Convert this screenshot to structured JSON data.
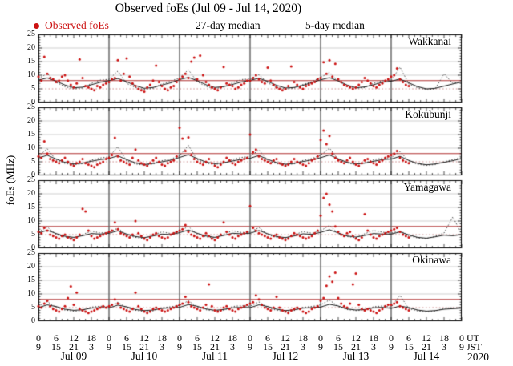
{
  "page": {
    "title": "Observed foEs (Jul 09 - Jul 14, 2020)",
    "year_label": "2020"
  },
  "legend": {
    "observed_label": "Observed foEs",
    "median27_label": "27-day median",
    "median5_label": "5-day median"
  },
  "axes": {
    "ylabel": "foEs (MHz)",
    "yticks": [
      "25",
      "20",
      "15",
      "10",
      "5",
      "0"
    ],
    "ut_unit": "UT",
    "jst_unit": "JST",
    "ut": [
      "0",
      "6",
      "12",
      "18",
      "0",
      "6",
      "12",
      "18",
      "0",
      "6",
      "12",
      "18",
      "0",
      "6",
      "12",
      "18",
      "0",
      "6",
      "12",
      "18",
      "0",
      "6",
      "12",
      "18",
      "0"
    ],
    "jst": [
      "9",
      "15",
      "21",
      "3",
      "9",
      "15",
      "21",
      "3",
      "9",
      "15",
      "21",
      "3",
      "9",
      "15",
      "21",
      "3",
      "9",
      "15",
      "21",
      "3",
      "9",
      "15",
      "21",
      "3",
      "9"
    ],
    "days": [
      "Jul 09",
      "Jul 10",
      "Jul 11",
      "Jul 12",
      "Jul 13",
      "Jul 14"
    ]
  },
  "colors": {
    "observed": "#cc1111",
    "median27": "#1a1a1a",
    "median5": "#3c3c3c",
    "threshold_solid": "#b03030",
    "threshold_dotted": "#cc8888",
    "grid": "#c4c4c4",
    "dayline": "#606060",
    "border": "#000000"
  },
  "chart_data": {
    "type": "scatter",
    "title": "Observed foEs (Jul 09 - Jul 14, 2020)",
    "ylabel": "foEs (MHz)",
    "ylim": [
      0,
      25
    ],
    "x_unit": "hours (UT) from Jul 09 00:00",
    "x_range": [
      0,
      144
    ],
    "observed_step_hours": 1,
    "median_step_hours": 3,
    "gridlines_mhz": [
      10,
      15,
      20
    ],
    "threshold_solid_mhz": 8,
    "threshold_dotted_mhz": 5,
    "day_boundaries_hours": [
      24,
      48,
      72,
      96,
      120
    ],
    "stations": [
      {
        "name": "Wakkanai",
        "observed": [
          9.5,
          8.0,
          16.8,
          10.5,
          9.0,
          8.5,
          7.5,
          8.0,
          9.5,
          10.0,
          8.0,
          6.5,
          5.5,
          7.0,
          15.8,
          9.0,
          6.0,
          5.5,
          5.0,
          4.5,
          6.0,
          5.5,
          6.5,
          7.0,
          7.5,
          8.5,
          9.0,
          15.5,
          8.0,
          10.5,
          16.2,
          9.5,
          7.0,
          6.0,
          5.0,
          4.5,
          4.0,
          5.5,
          6.5,
          8.0,
          13.5,
          7.5,
          6.0,
          5.0,
          4.5,
          5.5,
          6.0,
          7.5,
          8.5,
          9.5,
          10.5,
          9.0,
          15.0,
          16.5,
          8.5,
          17.2,
          10.0,
          7.5,
          6.5,
          5.5,
          5.0,
          4.5,
          5.5,
          13.0,
          7.0,
          6.5,
          6.0,
          5.0,
          5.5,
          6.5,
          7.0,
          8.0,
          8.0,
          9.0,
          10.0,
          8.5,
          7.5,
          7.0,
          12.8,
          8.0,
          6.5,
          5.5,
          5.0,
          4.5,
          5.0,
          6.0,
          13.2,
          7.5,
          6.5,
          5.5,
          5.0,
          6.0,
          6.5,
          7.0,
          7.5,
          8.5,
          9.0,
          14.8,
          10.5,
          15.5,
          9.5,
          14.2,
          8.5,
          7.5,
          6.5,
          6.0,
          5.5,
          5.0,
          5.5,
          6.5,
          7.5,
          9.0,
          8.0,
          7.0,
          6.0,
          5.5,
          6.5,
          7.0,
          8.0,
          8.5,
          9.5,
          10.0,
          12.5,
          8.5,
          7.5,
          6.5,
          6.0
        ],
        "median27": [
          8.2,
          9.0,
          7.8,
          6.4,
          5.4,
          5.6,
          6.5,
          7.4,
          8.0,
          8.8,
          7.6,
          6.2,
          5.2,
          5.5,
          6.4,
          7.2,
          8.4,
          9.2,
          8.0,
          6.5,
          5.5,
          5.8,
          6.6,
          7.5,
          8.1,
          8.9,
          7.7,
          6.3,
          5.3,
          5.5,
          6.3,
          7.3,
          8.3,
          9.1,
          7.9,
          6.4,
          5.4,
          5.7,
          6.5,
          7.4,
          7.8,
          8.6,
          7.2,
          5.8,
          5.0,
          5.2,
          6.0,
          6.8,
          7.5
        ],
        "median5": [
          8.8,
          10.6,
          7.4,
          5.8,
          5.0,
          5.3,
          7.0,
          8.2,
          8.5,
          11.5,
          7.0,
          5.5,
          4.8,
          5.2,
          6.8,
          7.8,
          9.0,
          12.0,
          7.6,
          5.9,
          5.1,
          5.6,
          7.2,
          8.4,
          8.6,
          10.2,
          7.2,
          5.6,
          4.9,
          5.3,
          6.6,
          7.6,
          9.2,
          11.0,
          7.8,
          6.0,
          5.2,
          5.5,
          7.0,
          8.0,
          8.0,
          13.0,
          6.8,
          5.4,
          4.7,
          5.0,
          10.5,
          7.0,
          7.6
        ]
      },
      {
        "name": "Kokubunji",
        "observed": [
          7.0,
          6.5,
          12.5,
          8.0,
          6.0,
          5.5,
          5.0,
          4.5,
          5.5,
          6.5,
          5.0,
          4.0,
          3.5,
          4.5,
          5.0,
          6.0,
          4.5,
          4.0,
          3.5,
          3.0,
          4.0,
          4.5,
          5.0,
          6.0,
          6.5,
          7.5,
          13.8,
          7.0,
          5.5,
          5.0,
          4.5,
          4.0,
          6.5,
          9.5,
          5.5,
          4.5,
          4.0,
          3.5,
          4.5,
          5.5,
          6.5,
          5.0,
          4.0,
          3.5,
          4.5,
          5.0,
          5.5,
          7.0,
          17.5,
          13.5,
          9.0,
          14.0,
          7.5,
          6.0,
          5.0,
          4.5,
          4.0,
          5.0,
          6.0,
          4.5,
          3.5,
          3.0,
          4.0,
          5.0,
          6.5,
          5.5,
          4.5,
          4.0,
          5.0,
          5.5,
          6.0,
          6.5,
          15.0,
          8.5,
          9.5,
          7.0,
          6.0,
          5.5,
          5.0,
          4.5,
          5.5,
          6.0,
          4.5,
          4.0,
          3.5,
          4.0,
          5.0,
          6.0,
          5.0,
          4.5,
          4.0,
          3.5,
          4.5,
          5.5,
          6.0,
          7.0,
          13.0,
          16.5,
          11.5,
          14.5,
          8.0,
          6.5,
          5.5,
          5.0,
          4.5,
          5.5,
          6.5,
          5.0,
          4.0,
          3.5,
          4.5,
          5.5,
          6.0,
          5.0,
          4.5,
          4.0,
          5.0,
          5.5,
          6.5,
          7.0,
          7.5,
          8.0,
          9.0,
          6.5,
          5.5,
          5.0,
          4.5
        ],
        "median27": [
          6.4,
          7.4,
          6.0,
          4.8,
          4.2,
          4.5,
          5.2,
          5.8,
          6.2,
          7.2,
          5.8,
          4.6,
          4.0,
          4.4,
          5.0,
          5.6,
          6.6,
          7.6,
          6.2,
          4.9,
          4.3,
          4.6,
          5.3,
          5.9,
          6.3,
          7.3,
          5.9,
          4.7,
          4.1,
          4.4,
          5.1,
          5.7,
          6.5,
          7.5,
          6.1,
          4.8,
          4.2,
          4.5,
          5.2,
          5.8,
          6.0,
          7.0,
          5.5,
          4.4,
          3.9,
          4.2,
          4.8,
          5.4,
          6.2
        ],
        "median5": [
          7.0,
          9.8,
          5.6,
          4.4,
          3.9,
          4.3,
          5.6,
          6.4,
          6.8,
          10.5,
          5.3,
          4.2,
          3.8,
          4.2,
          5.4,
          6.0,
          7.2,
          11.0,
          5.8,
          4.5,
          4.0,
          4.5,
          5.8,
          6.6,
          6.9,
          9.4,
          5.4,
          4.3,
          3.8,
          4.3,
          5.5,
          6.2,
          7.4,
          10.0,
          5.9,
          4.6,
          4.0,
          4.6,
          5.7,
          6.4,
          6.5,
          8.8,
          5.2,
          4.1,
          3.7,
          4.0,
          5.0,
          5.8,
          6.6
        ]
      },
      {
        "name": "Yamagawa",
        "observed": [
          6.0,
          5.5,
          7.5,
          6.5,
          5.0,
          4.5,
          4.0,
          3.5,
          4.5,
          5.0,
          4.0,
          3.5,
          3.0,
          4.0,
          5.0,
          14.5,
          13.5,
          6.5,
          4.5,
          3.5,
          4.0,
          4.5,
          5.0,
          5.5,
          6.0,
          6.5,
          9.5,
          7.0,
          5.5,
          5.0,
          4.5,
          4.0,
          5.0,
          10.0,
          5.5,
          4.5,
          3.5,
          3.0,
          4.0,
          5.0,
          5.5,
          4.5,
          4.0,
          3.5,
          4.0,
          5.0,
          5.5,
          6.0,
          6.5,
          7.0,
          8.5,
          6.0,
          5.0,
          4.5,
          4.0,
          3.5,
          4.5,
          5.5,
          4.5,
          3.5,
          3.0,
          4.0,
          5.0,
          9.5,
          6.0,
          5.0,
          4.0,
          3.5,
          4.5,
          5.0,
          5.5,
          6.0,
          15.5,
          7.5,
          6.5,
          5.5,
          5.0,
          4.5,
          4.0,
          3.5,
          4.5,
          5.0,
          4.0,
          3.5,
          3.0,
          3.5,
          4.5,
          5.5,
          5.0,
          4.5,
          4.0,
          3.5,
          4.0,
          4.5,
          5.5,
          6.5,
          12.0,
          18.5,
          20.0,
          16.0,
          13.5,
          8.0,
          6.0,
          5.0,
          4.5,
          5.5,
          6.0,
          4.5,
          3.5,
          3.0,
          4.0,
          12.5,
          6.5,
          5.0,
          4.0,
          3.5,
          4.5,
          5.0,
          5.5,
          6.0,
          6.5,
          7.0,
          7.5,
          6.0,
          5.0,
          4.5,
          4.0
        ],
        "median27": [
          5.6,
          6.6,
          5.4,
          4.4,
          4.0,
          4.6,
          5.4,
          5.2,
          5.5,
          6.4,
          5.2,
          4.3,
          3.9,
          4.5,
          5.2,
          5.0,
          5.7,
          6.7,
          5.5,
          4.5,
          4.0,
          4.7,
          5.5,
          5.3,
          5.5,
          6.5,
          5.3,
          4.3,
          3.9,
          4.5,
          5.3,
          5.1,
          5.8,
          6.8,
          5.6,
          4.5,
          4.1,
          4.7,
          5.4,
          5.2,
          5.2,
          6.0,
          4.9,
          4.0,
          3.7,
          4.2,
          4.8,
          4.6,
          5.0
        ],
        "median5": [
          6.0,
          7.8,
          5.0,
          4.1,
          3.7,
          5.0,
          6.3,
          5.6,
          5.8,
          7.4,
          4.8,
          4.0,
          3.6,
          4.8,
          6.0,
          5.4,
          6.2,
          8.0,
          5.2,
          4.2,
          3.8,
          5.2,
          6.4,
          5.8,
          5.9,
          7.6,
          4.9,
          4.0,
          3.7,
          4.9,
          6.1,
          5.5,
          6.4,
          8.4,
          5.4,
          4.3,
          3.9,
          5.3,
          6.5,
          5.9,
          5.5,
          6.4,
          4.6,
          3.8,
          3.5,
          4.4,
          5.6,
          11.5,
          5.2
        ]
      },
      {
        "name": "Okinawa",
        "observed": [
          5.5,
          5.0,
          6.5,
          7.5,
          5.5,
          4.5,
          4.0,
          3.5,
          4.5,
          5.5,
          8.5,
          12.8,
          6.0,
          10.5,
          4.5,
          4.0,
          3.5,
          3.0,
          3.5,
          4.0,
          4.5,
          5.0,
          5.5,
          5.0,
          5.5,
          6.0,
          8.0,
          6.5,
          5.0,
          4.5,
          4.0,
          3.5,
          4.5,
          10.5,
          5.5,
          4.5,
          3.5,
          3.0,
          3.5,
          4.5,
          5.0,
          4.5,
          4.0,
          3.5,
          4.0,
          4.5,
          5.0,
          5.5,
          6.0,
          6.5,
          9.0,
          7.0,
          5.5,
          5.0,
          4.5,
          4.0,
          5.0,
          6.0,
          13.5,
          5.5,
          4.0,
          3.5,
          4.0,
          5.0,
          5.5,
          4.5,
          4.0,
          3.5,
          4.5,
          5.0,
          5.5,
          6.0,
          6.5,
          7.0,
          9.5,
          8.0,
          6.0,
          5.0,
          4.5,
          4.0,
          5.0,
          9.0,
          5.0,
          4.0,
          3.5,
          3.0,
          4.0,
          4.5,
          5.0,
          4.5,
          3.5,
          3.0,
          3.5,
          4.5,
          5.0,
          5.5,
          7.5,
          8.5,
          13.0,
          16.5,
          14.5,
          17.8,
          8.5,
          6.5,
          5.5,
          5.0,
          6.5,
          13.5,
          17.5,
          6.0,
          4.5,
          4.0,
          4.5,
          4.0,
          3.5,
          3.0,
          4.0,
          4.5,
          5.5,
          6.0,
          6.0,
          6.5,
          7.0,
          5.5,
          5.0,
          4.5,
          4.0
        ],
        "median27": [
          5.0,
          6.0,
          5.4,
          4.4,
          4.0,
          4.2,
          4.8,
          5.0,
          4.9,
          5.9,
          5.3,
          4.3,
          3.9,
          4.1,
          4.7,
          4.9,
          5.1,
          6.1,
          5.5,
          4.5,
          4.0,
          4.3,
          4.9,
          5.1,
          5.0,
          6.0,
          5.4,
          4.4,
          3.9,
          4.2,
          4.8,
          5.0,
          5.2,
          6.2,
          5.6,
          4.5,
          4.1,
          4.3,
          4.9,
          5.1,
          4.7,
          5.6,
          5.0,
          4.1,
          3.7,
          3.9,
          4.4,
          4.6,
          4.8
        ],
        "median5": [
          5.6,
          7.2,
          5.0,
          4.1,
          3.7,
          3.9,
          5.2,
          5.5,
          5.4,
          7.0,
          4.8,
          4.0,
          3.6,
          3.8,
          5.0,
          5.3,
          5.8,
          7.5,
          5.2,
          4.2,
          3.8,
          4.0,
          5.4,
          5.7,
          5.5,
          7.1,
          4.9,
          4.0,
          3.6,
          3.9,
          5.1,
          5.4,
          6.0,
          7.8,
          5.4,
          4.3,
          3.9,
          4.1,
          5.3,
          5.6,
          5.2,
          9.5,
          4.6,
          3.8,
          3.4,
          3.7,
          4.8,
          5.0,
          5.0
        ]
      }
    ]
  }
}
